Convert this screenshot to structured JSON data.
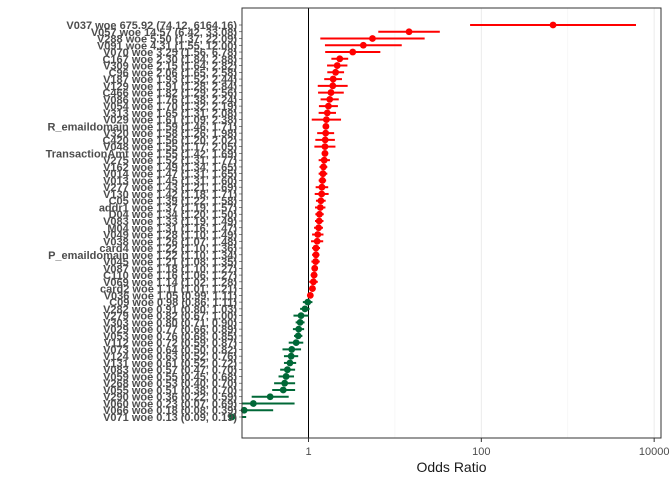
{
  "chart_data": {
    "type": "forest",
    "xlabel": "Odds Ratio",
    "ylabel": "",
    "title": "",
    "x_scale": "log",
    "x_ticks": [
      {
        "value": 1,
        "label": "1"
      },
      {
        "value": 100,
        "label": "100"
      },
      {
        "value": 10000,
        "label": "10000"
      }
    ],
    "xlim": [
      0.17,
      12000
    ],
    "reference_line": 1,
    "grid": "vertical-only",
    "colors": {
      "above": "#ff0000",
      "below": "#006837",
      "reference": "#000000",
      "panel_border": "#333333",
      "grid": "#ebebeb"
    },
    "rows": [
      {
        "label": "V037 woe 675.92 (74.12, 6164.16)",
        "or": 675.92,
        "lo": 74.12,
        "hi": 6164.16
      },
      {
        "label": "V057 woe 14.57 (6.42, 33.08)",
        "or": 14.57,
        "lo": 6.42,
        "hi": 33.08
      },
      {
        "label": "V288 woe 5.50 (1.37, 22.09)",
        "or": 5.5,
        "lo": 1.37,
        "hi": 22.09
      },
      {
        "label": "V091 woe 4.31 (1.55, 12.00)",
        "or": 4.31,
        "lo": 1.55,
        "hi": 12.0
      },
      {
        "label": "V070 woe 3.25 (1.56, 6.78)",
        "or": 3.25,
        "lo": 1.56,
        "hi": 6.78
      },
      {
        "label": "C167 woe 2.30 (1.84, 2.88)",
        "or": 2.3,
        "lo": 1.84,
        "hi": 2.88
      },
      {
        "label": "V309 woe 2.15 (1.64, 2.82)",
        "or": 2.15,
        "lo": 1.64,
        "hi": 2.82
      },
      {
        "label": "C96 woe 2.06 (1.65, 2.58)",
        "or": 2.06,
        "lo": 1.65,
        "hi": 2.58
      },
      {
        "label": "V187 woe 1.93 (1.52, 2.44)",
        "or": 1.93,
        "lo": 1.52,
        "hi": 2.44
      },
      {
        "label": "V129 woe 1.91 (1.28, 2.84)",
        "or": 1.91,
        "lo": 1.28,
        "hi": 2.84
      },
      {
        "label": "C466 woe 1.82 (1.29, 2.56)",
        "or": 1.82,
        "lo": 1.29,
        "hi": 2.56
      },
      {
        "label": "V086 woe 1.76 (1.38, 2.24)",
        "or": 1.76,
        "lo": 1.38,
        "hi": 2.24
      },
      {
        "label": "V054 woe 1.70 (1.32, 2.19)",
        "or": 1.7,
        "lo": 1.32,
        "hi": 2.19
      },
      {
        "label": "V313 woe 1.65 (1.31, 2.08)",
        "or": 1.65,
        "lo": 1.31,
        "hi": 2.08
      },
      {
        "label": "V029 woe 1.61 (1.09, 2.38)",
        "or": 1.61,
        "lo": 1.09,
        "hi": 2.38
      },
      {
        "label": "R_emaildomain woe 1.59 (1.46, 1.71)",
        "or": 1.59,
        "lo": 1.46,
        "hi": 1.71
      },
      {
        "label": "V320 woe 1.58 (1.26, 1.98)",
        "or": 1.58,
        "lo": 1.26,
        "hi": 1.98
      },
      {
        "label": "C420 woe 1.56 (1.20, 2.02)",
        "or": 1.56,
        "lo": 1.2,
        "hi": 2.02
      },
      {
        "label": "V048 woe 1.55 (1.17, 2.05)",
        "or": 1.55,
        "lo": 1.17,
        "hi": 2.05
      },
      {
        "label": "TransactionAmt woe 1.55 (1.42, 1.69)",
        "or": 1.55,
        "lo": 1.42,
        "hi": 1.69
      },
      {
        "label": "V275 woe 1.52 (1.31, 1.77)",
        "or": 1.52,
        "lo": 1.31,
        "hi": 1.77
      },
      {
        "label": "V162 woe 1.49 (1.34, 1.65)",
        "or": 1.49,
        "lo": 1.34,
        "hi": 1.65
      },
      {
        "label": "V014 woe 1.47 (1.31, 1.65)",
        "or": 1.47,
        "lo": 1.31,
        "hi": 1.65
      },
      {
        "label": "V013 woe 1.45 (1.31, 1.60)",
        "or": 1.45,
        "lo": 1.31,
        "hi": 1.6
      },
      {
        "label": "V277 woe 1.43 (1.21, 1.69)",
        "or": 1.43,
        "lo": 1.21,
        "hi": 1.69
      },
      {
        "label": "V130 woe 1.42 (1.18, 1.71)",
        "or": 1.42,
        "lo": 1.18,
        "hi": 1.71
      },
      {
        "label": "C05 woe 1.39 (1.22, 1.58)",
        "or": 1.39,
        "lo": 1.22,
        "hi": 1.58
      },
      {
        "label": "addr1 woe 1.37 (1.19, 1.57)",
        "or": 1.37,
        "lo": 1.19,
        "hi": 1.57
      },
      {
        "label": "D04 woe 1.34 (1.20, 1.50)",
        "or": 1.34,
        "lo": 1.2,
        "hi": 1.5
      },
      {
        "label": "V083 woe 1.33 (1.19, 1.49)",
        "or": 1.33,
        "lo": 1.19,
        "hi": 1.49
      },
      {
        "label": "M04 woe 1.31 (1.16, 1.47)",
        "or": 1.31,
        "lo": 1.16,
        "hi": 1.47
      },
      {
        "label": "V049 woe 1.28 (1.10, 1.49)",
        "or": 1.28,
        "lo": 1.1,
        "hi": 1.49
      },
      {
        "label": "V038 woe 1.26 (1.07, 1.48)",
        "or": 1.26,
        "lo": 1.07,
        "hi": 1.48
      },
      {
        "label": "card4 woe 1.22 (1.10, 1.36)",
        "or": 1.22,
        "lo": 1.1,
        "hi": 1.36
      },
      {
        "label": "P_emaildomain woe 1.22 (1.10, 1.34)",
        "or": 1.22,
        "lo": 1.1,
        "hi": 1.34
      },
      {
        "label": "V045 woe 1.21 (1.08, 1.35)",
        "or": 1.21,
        "lo": 1.08,
        "hi": 1.35
      },
      {
        "label": "V087 woe 1.18 (1.10, 1.27)",
        "or": 1.18,
        "lo": 1.1,
        "hi": 1.27
      },
      {
        "label": "C110 woe 1.16 (1.06, 1.27)",
        "or": 1.16,
        "lo": 1.06,
        "hi": 1.27
      },
      {
        "label": "V069 woe 1.14 (1.02, 1.28)",
        "or": 1.14,
        "lo": 1.02,
        "hi": 1.28
      },
      {
        "label": "card2 woe 1.11 (1.01, 1.21)",
        "or": 1.11,
        "lo": 1.01,
        "hi": 1.21
      },
      {
        "label": "V036 woe 1.05 (0.99, 1.11)",
        "or": 1.05,
        "lo": 0.99,
        "hi": 1.11
      },
      {
        "label": "C09 woe 0.98 (0.86, 1.11)",
        "or": 0.98,
        "lo": 0.86,
        "hi": 1.11
      },
      {
        "label": "V282 woe 0.91 (0.80, 1.03)",
        "or": 0.91,
        "lo": 0.8,
        "hi": 1.03
      },
      {
        "label": "V279 woe 0.82 (0.67, 1.00)",
        "or": 0.82,
        "lo": 0.67,
        "hi": 1.0
      },
      {
        "label": "V303 woe 0.80 (0.71, 0.90)",
        "or": 0.8,
        "lo": 0.71,
        "hi": 0.9
      },
      {
        "label": "V029 woe 0.77 (0.66, 0.89)",
        "or": 0.77,
        "lo": 0.66,
        "hi": 0.89
      },
      {
        "label": "V053 woe 0.76 (0.68, 0.85)",
        "or": 0.76,
        "lo": 0.68,
        "hi": 0.85
      },
      {
        "label": "V112 woe 0.72 (0.59, 0.87)",
        "or": 0.72,
        "lo": 0.59,
        "hi": 0.87
      },
      {
        "label": "V073 woe 0.64 (0.50, 0.82)",
        "or": 0.64,
        "lo": 0.5,
        "hi": 0.82
      },
      {
        "label": "V124 woe 0.63 (0.52, 0.76)",
        "or": 0.63,
        "lo": 0.52,
        "hi": 0.76
      },
      {
        "label": "V131 woe 0.61 (0.52, 0.72)",
        "or": 0.61,
        "lo": 0.52,
        "hi": 0.72
      },
      {
        "label": "V083 woe 0.57 (0.47, 0.70)",
        "or": 0.57,
        "lo": 0.47,
        "hi": 0.7
      },
      {
        "label": "V059 woe 0.55 (0.45, 0.68)",
        "or": 0.55,
        "lo": 0.45,
        "hi": 0.68
      },
      {
        "label": "V268 woe 0.53 (0.40, 0.70)",
        "or": 0.53,
        "lo": 0.4,
        "hi": 0.7
      },
      {
        "label": "V055 woe 0.51 (0.38, 0.70)",
        "or": 0.51,
        "lo": 0.38,
        "hi": 0.7
      },
      {
        "label": "V290 woe 0.36 (0.22, 0.59)",
        "or": 0.36,
        "lo": 0.22,
        "hi": 0.59
      },
      {
        "label": "V060 woe 0.23 (0.07, 0.69)",
        "or": 0.23,
        "lo": 0.07,
        "hi": 0.69
      },
      {
        "label": "V066 woe 0.18 (0.08, 0.39)",
        "or": 0.18,
        "lo": 0.08,
        "hi": 0.39
      },
      {
        "label": "V071 woe 0.13 (0.09, 0.19)",
        "or": 0.13,
        "lo": 0.09,
        "hi": 0.19
      }
    ]
  }
}
